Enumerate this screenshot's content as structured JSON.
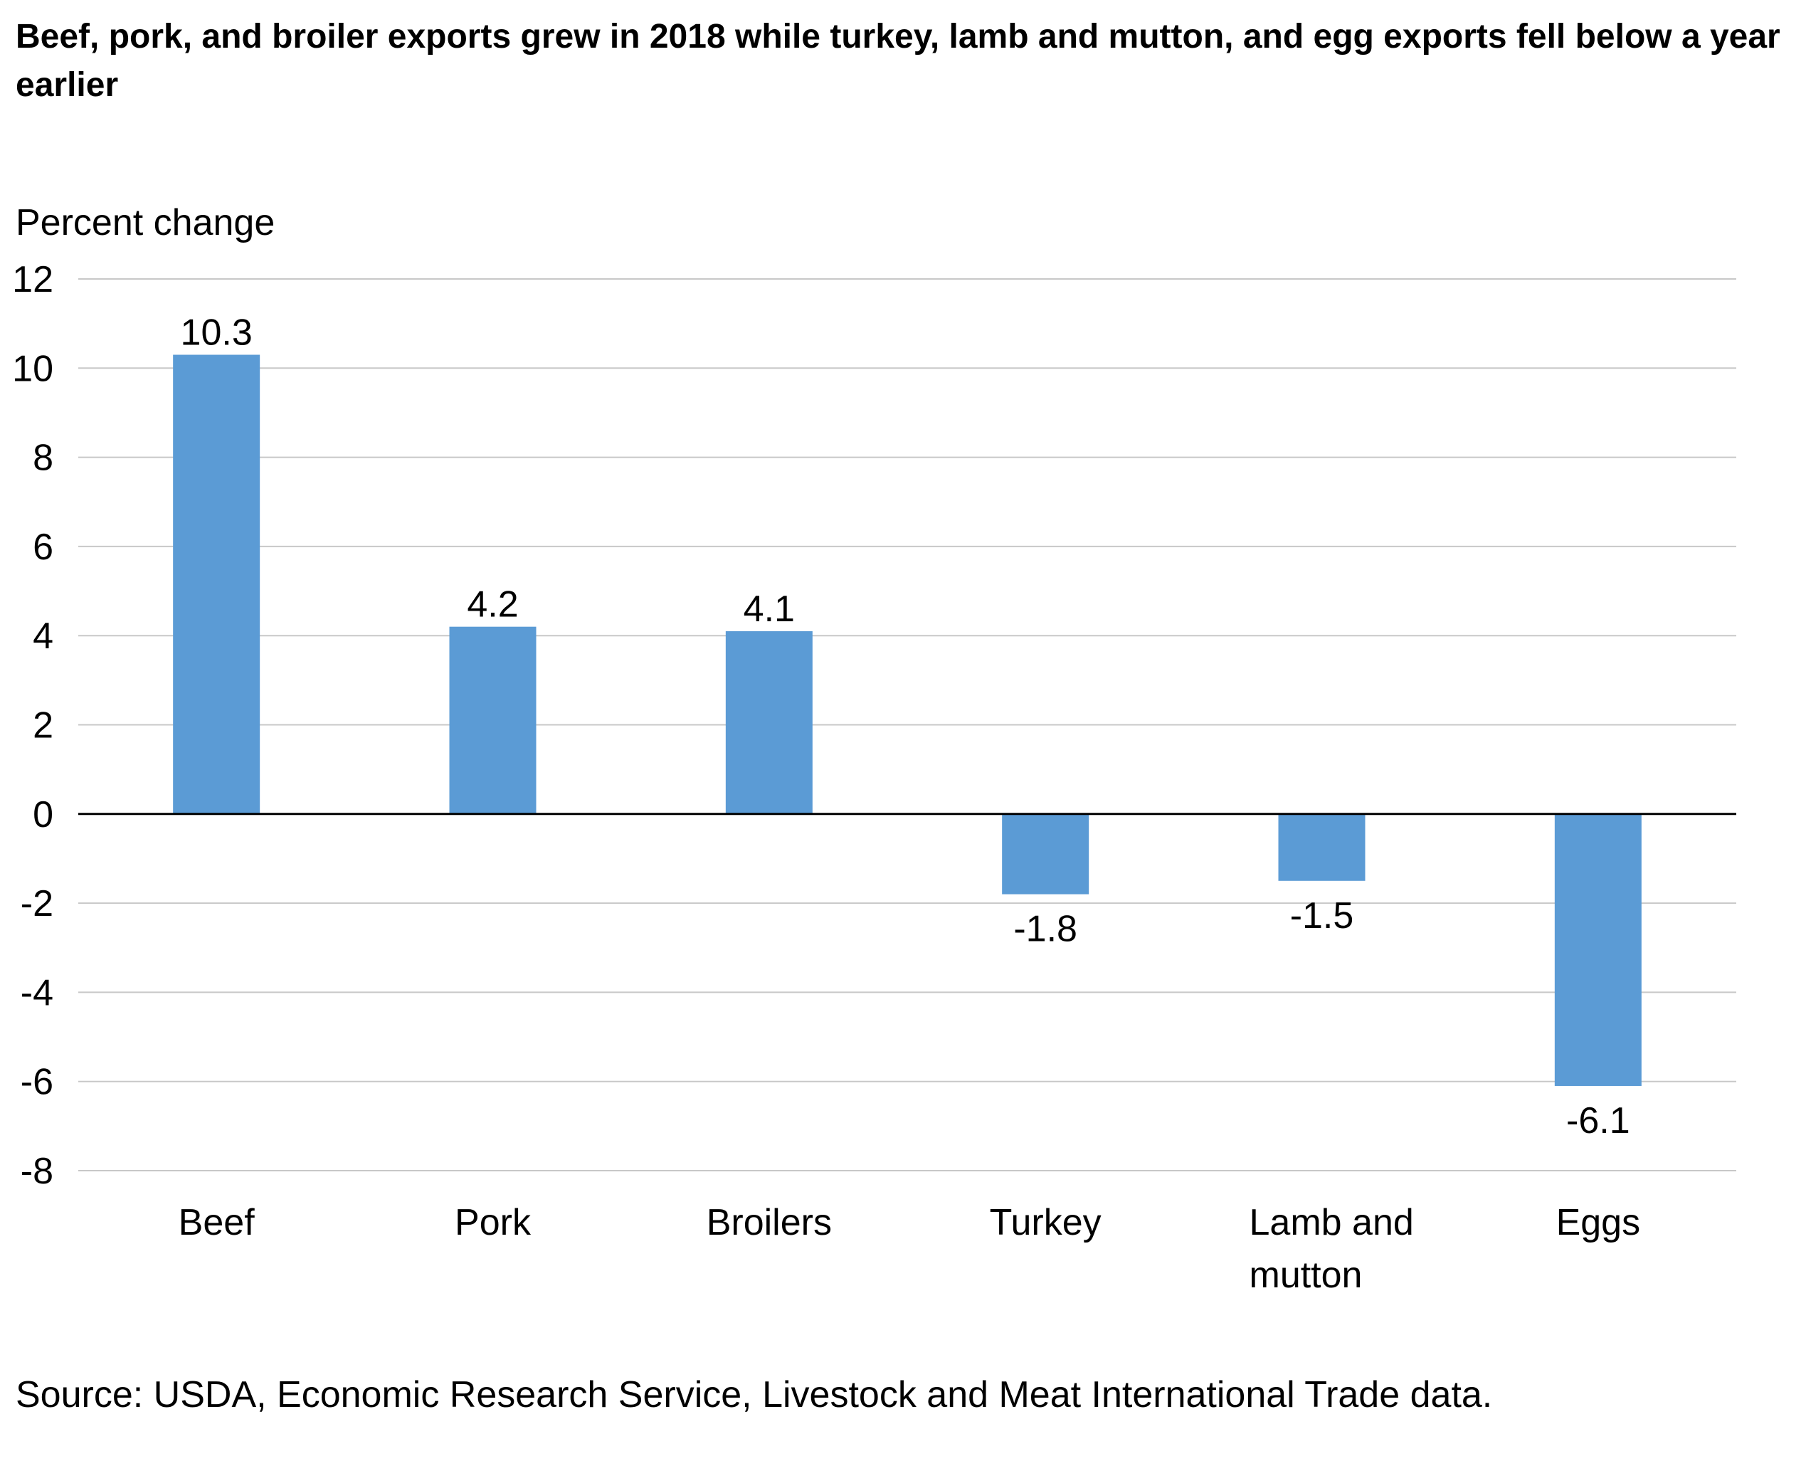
{
  "chart_data": {
    "type": "bar",
    "title": "Beef, pork, and broiler exports grew in 2018 while turkey, lamb and mutton, and egg exports fell below a year earlier",
    "ylabel": "Percent change",
    "xlabel": "",
    "categories": [
      [
        "Beef"
      ],
      [
        "Pork"
      ],
      [
        "Broilers"
      ],
      [
        "Turkey"
      ],
      [
        "Lamb and",
        "mutton"
      ],
      [
        "Eggs"
      ]
    ],
    "values": [
      10.3,
      4.2,
      4.1,
      -1.8,
      -1.5,
      -6.1
    ],
    "data_labels": [
      "10.3",
      "4.2",
      "4.1",
      "-1.8",
      "-1.5",
      "-6.1"
    ],
    "ylim": [
      -8,
      12
    ],
    "yticks": [
      12,
      10,
      8,
      6,
      4,
      2,
      0,
      -2,
      -4,
      -6,
      -8
    ],
    "grid": true,
    "bar_color": "#5b9bd5",
    "grid_color": "#c8c8c8",
    "zero_line_color": "#000000",
    "source": "Source: USDA, Economic Research Service, Livestock and Meat International Trade data."
  }
}
